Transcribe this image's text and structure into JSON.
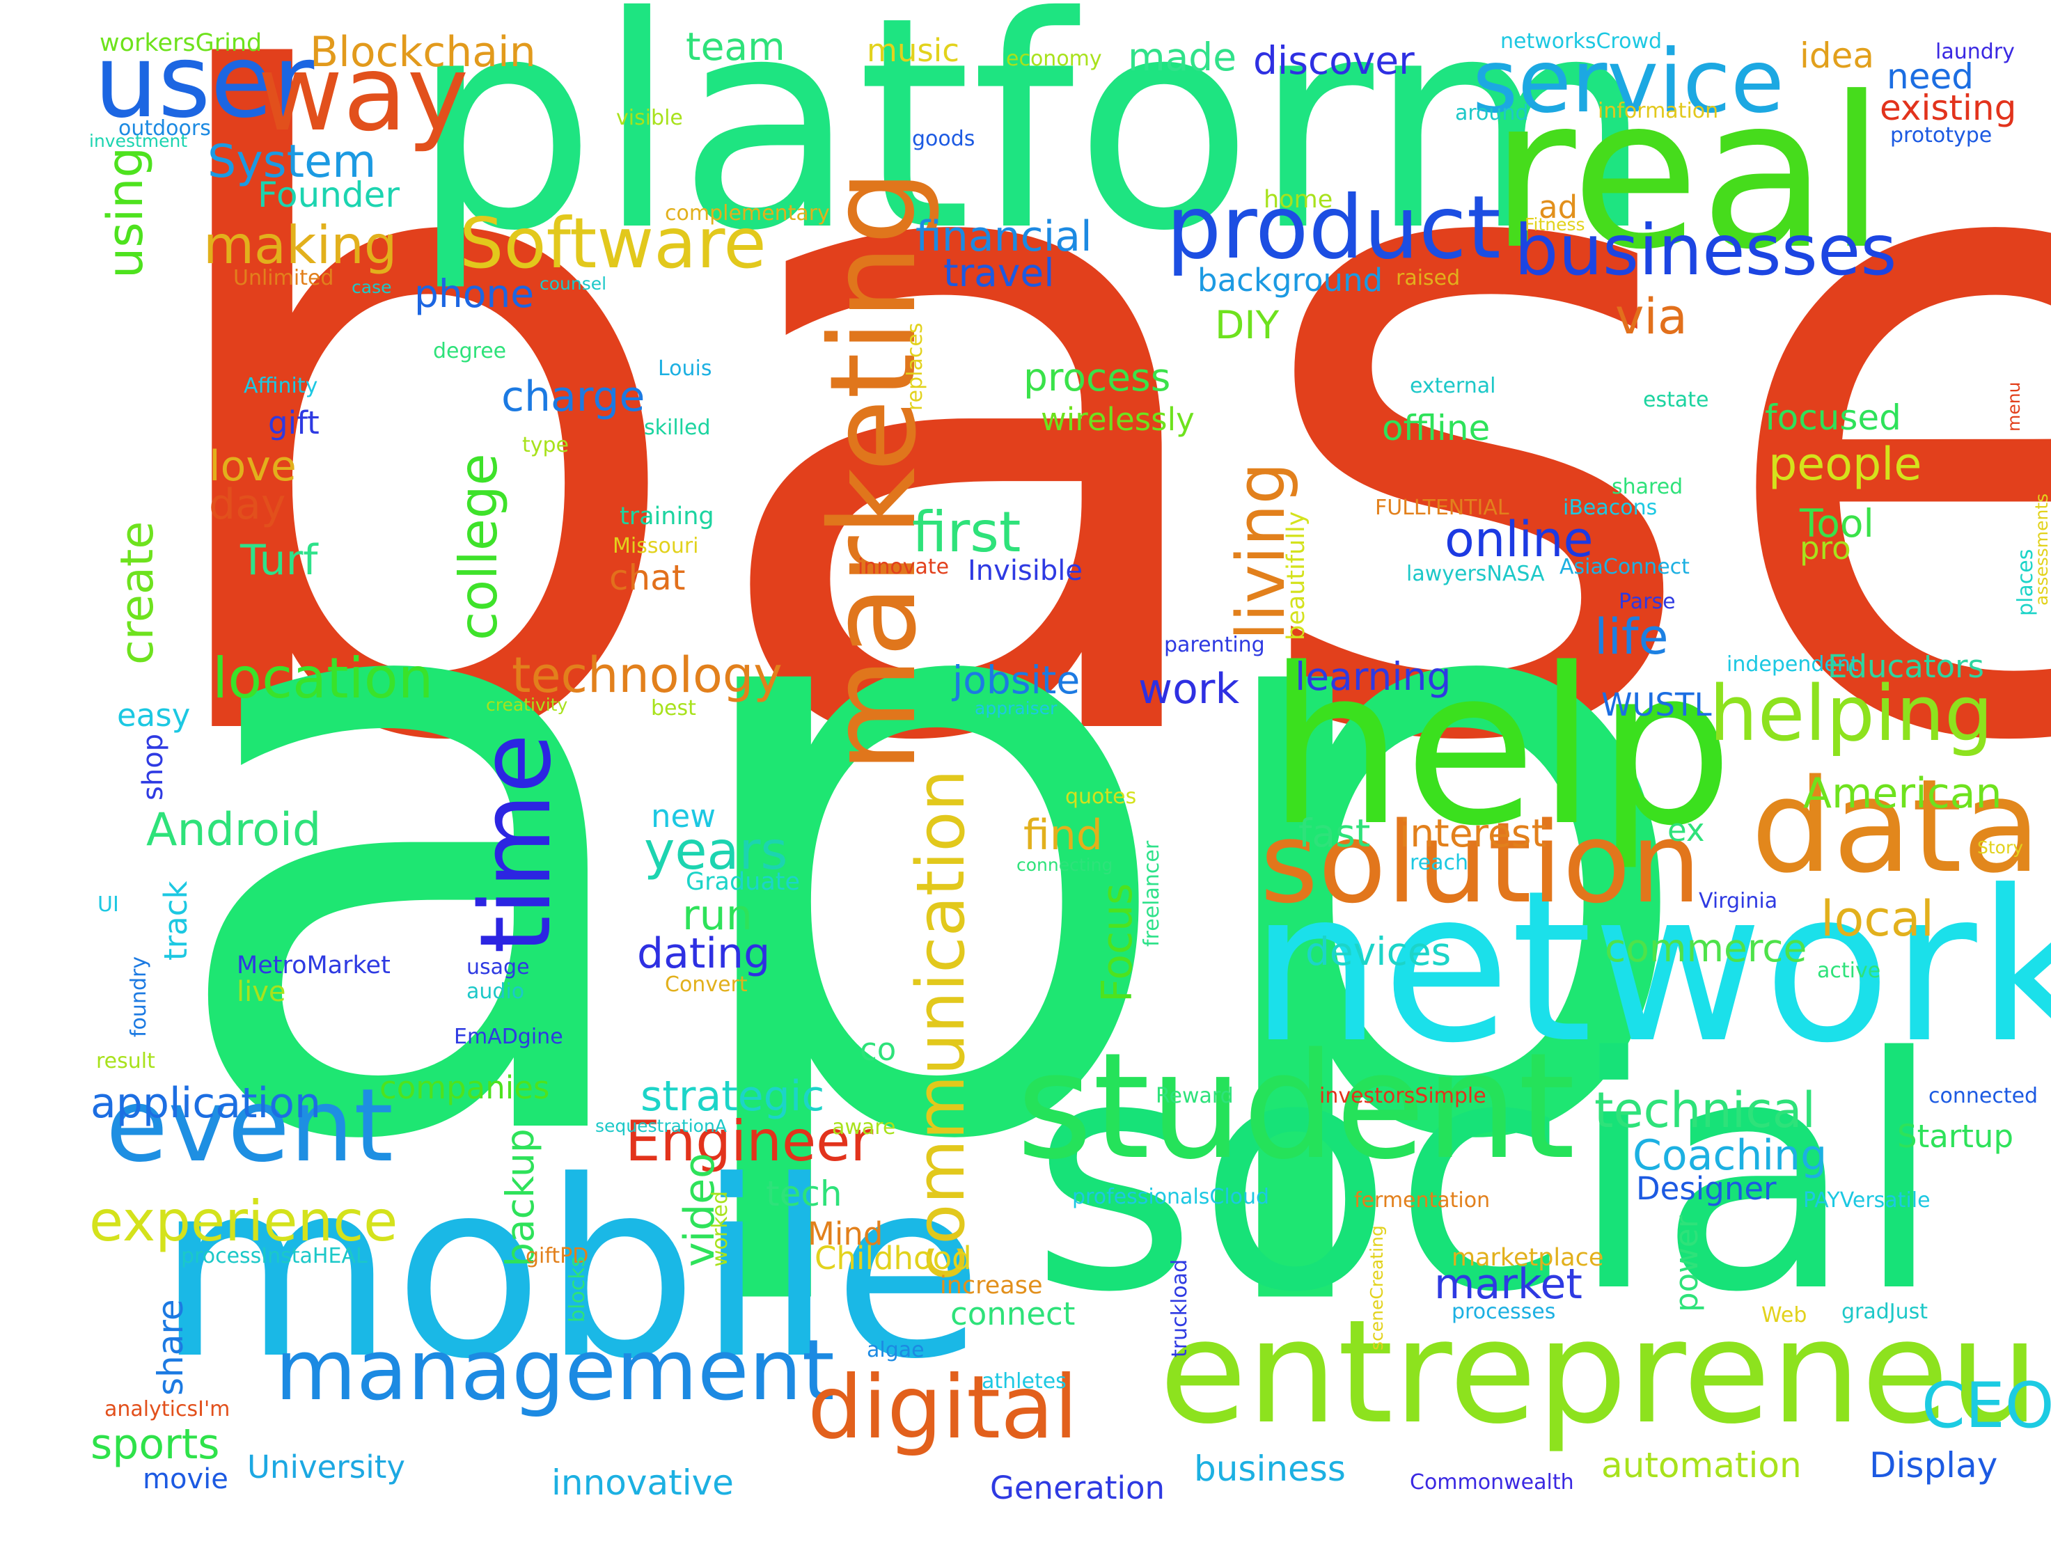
{
  "words": [
    {
      "t": "based",
      "c": "#e2401c"
    },
    {
      "t": "app",
      "c": "#1ee672"
    },
    {
      "t": "platform",
      "c": "#1ee481"
    },
    {
      "t": "real",
      "c": "#46dc1c"
    },
    {
      "t": "social",
      "c": "#17e278"
    },
    {
      "t": "mobile",
      "c": "#1ab8e6"
    },
    {
      "t": "network",
      "c": "#1be0ea"
    },
    {
      "t": "help",
      "c": "#3be01e"
    },
    {
      "t": "student",
      "c": "#25e25a"
    },
    {
      "t": "entrepreneur",
      "c": "#8de21e"
    },
    {
      "t": "data",
      "c": "#e2871c"
    },
    {
      "t": "solution",
      "c": "#e2761c"
    },
    {
      "t": "marketing",
      "c": "#e0761c"
    },
    {
      "t": "time",
      "c": "#2c25e2"
    },
    {
      "t": "event",
      "c": "#1e8fe2"
    },
    {
      "t": "management",
      "c": "#1c8ae2"
    },
    {
      "t": "digital",
      "c": "#e2601c"
    },
    {
      "t": "communication",
      "c": "#e2c81c"
    },
    {
      "t": "user",
      "c": "#1c66e2"
    },
    {
      "t": "way",
      "c": "#e2501c"
    },
    {
      "t": "service",
      "c": "#1ca8e2"
    },
    {
      "t": "product",
      "c": "#1c4ee2"
    },
    {
      "t": "businesses",
      "c": "#1c45e2"
    },
    {
      "t": "Software",
      "c": "#e2c81c"
    },
    {
      "t": "helping",
      "c": "#8de21e"
    },
    {
      "t": "living",
      "c": "#e2801c"
    },
    {
      "t": "CEO",
      "c": "#1ccbe2"
    },
    {
      "t": "Engineer",
      "c": "#e2331c"
    },
    {
      "t": "experience",
      "c": "#d4e21c"
    },
    {
      "t": "location",
      "c": "#3ae22a"
    },
    {
      "t": "technology",
      "c": "#e2801c"
    },
    {
      "t": "college",
      "c": "#3ee22a"
    },
    {
      "t": "Blockchain",
      "c": "#e29a1c"
    },
    {
      "t": "making",
      "c": "#e2b01c"
    },
    {
      "t": "System",
      "c": "#1c9ae2"
    },
    {
      "t": "Founder",
      "c": "#1cd4b0"
    },
    {
      "t": "financial",
      "c": "#1c8ae2"
    },
    {
      "t": "travel",
      "c": "#1c5ae2"
    },
    {
      "t": "team",
      "c": "#2ee27a"
    },
    {
      "t": "music",
      "c": "#e2d21c"
    },
    {
      "t": "made",
      "c": "#30e28a"
    },
    {
      "t": "discover",
      "c": "#2e30e2"
    },
    {
      "t": "idea",
      "c": "#e2a01c"
    },
    {
      "t": "need",
      "c": "#1c6ee2"
    },
    {
      "t": "existing",
      "c": "#e2331c"
    },
    {
      "t": "laundry",
      "c": "#3a28e2"
    },
    {
      "t": "prototype",
      "c": "#1c5ae2"
    },
    {
      "t": "networksCrowd",
      "c": "#1cc8e2"
    },
    {
      "t": "workersGrind",
      "c": "#6ee21c"
    },
    {
      "t": "outdoors",
      "c": "#1c8ae2"
    },
    {
      "t": "investment",
      "c": "#1cd4b0"
    },
    {
      "t": "using",
      "c": "#4ee21e"
    },
    {
      "t": "visible",
      "c": "#a8e21c"
    },
    {
      "t": "economy",
      "c": "#a8e21c"
    },
    {
      "t": "goods",
      "c": "#1c5ae2"
    },
    {
      "t": "around",
      "c": "#1cc8c8"
    },
    {
      "t": "information",
      "c": "#e2c81c"
    },
    {
      "t": "complementary",
      "c": "#e2b01c"
    },
    {
      "t": "home",
      "c": "#a8e21c"
    },
    {
      "t": "ad",
      "c": "#e2901c"
    },
    {
      "t": "Fitness",
      "c": "#e2d21c"
    },
    {
      "t": "Unlimited",
      "c": "#e2801c"
    },
    {
      "t": "case",
      "c": "#1cc8c8"
    },
    {
      "t": "counsel",
      "c": "#1cc8c8"
    },
    {
      "t": "background",
      "c": "#1c9ae2"
    },
    {
      "t": "raised",
      "c": "#e2b01c"
    },
    {
      "t": "phone",
      "c": "#1c66e2"
    },
    {
      "t": "via",
      "c": "#e2701c"
    },
    {
      "t": "DIY",
      "c": "#6ee21e"
    },
    {
      "t": "degree",
      "c": "#2ee27a"
    },
    {
      "t": "Affinity",
      "c": "#1cc8e2"
    },
    {
      "t": "Louis",
      "c": "#1cb0e2"
    },
    {
      "t": "charge",
      "c": "#1c7ae2"
    },
    {
      "t": "process",
      "c": "#3ae24a"
    },
    {
      "t": "wirelessly",
      "c": "#6ee21e"
    },
    {
      "t": "external",
      "c": "#1cc8c8"
    },
    {
      "t": "estate",
      "c": "#1cd4a0"
    },
    {
      "t": "focused",
      "c": "#2ee25a"
    },
    {
      "t": "menu",
      "c": "#e2401c"
    },
    {
      "t": "gift",
      "c": "#2e3ae2"
    },
    {
      "t": "type",
      "c": "#a8e21c"
    },
    {
      "t": "skilled",
      "c": "#1cd4a0"
    },
    {
      "t": "replaces",
      "c": "#e2d21c"
    },
    {
      "t": "offline",
      "c": "#2ee25a"
    },
    {
      "t": "love",
      "c": "#e2b01c"
    },
    {
      "t": "day",
      "c": "#e2501c"
    },
    {
      "t": "training",
      "c": "#1cd4a0"
    },
    {
      "t": "beautifully",
      "c": "#d4e21c"
    },
    {
      "t": "FULLTENTIAL",
      "c": "#e2801c"
    },
    {
      "t": "iBeacons",
      "c": "#1cc8e2"
    },
    {
      "t": "shared",
      "c": "#2ee27a"
    },
    {
      "t": "people",
      "c": "#d4e21c"
    },
    {
      "t": "Tool",
      "c": "#3ae24a"
    },
    {
      "t": "pro",
      "c": "#a8e21c"
    },
    {
      "t": "places",
      "c": "#1cd4c8"
    },
    {
      "t": "assessments",
      "c": "#e2d21c"
    },
    {
      "t": "first",
      "c": "#2ee27a"
    },
    {
      "t": "Missouri",
      "c": "#e2d21c"
    },
    {
      "t": "Turf",
      "c": "#2ee28a"
    },
    {
      "t": "chat",
      "c": "#e2701c"
    },
    {
      "t": "innovate",
      "c": "#e2401c"
    },
    {
      "t": "Invisible",
      "c": "#2e3ae2"
    },
    {
      "t": "online",
      "c": "#1c3ae2"
    },
    {
      "t": "lawyersNASA",
      "c": "#1cc8c8"
    },
    {
      "t": "AsiaConnect",
      "c": "#1cb0e2"
    },
    {
      "t": "Parse",
      "c": "#2e3ae2"
    },
    {
      "t": "life",
      "c": "#1c80e2"
    },
    {
      "t": "create",
      "c": "#6ee21e"
    },
    {
      "t": "parenting",
      "c": "#2e3ae2"
    },
    {
      "t": "independent",
      "c": "#1cc8e2"
    },
    {
      "t": "Educators",
      "c": "#2ed4a0"
    },
    {
      "t": "jobsite",
      "c": "#1c7ae2"
    },
    {
      "t": "work",
      "c": "#2e30e2"
    },
    {
      "t": "learning",
      "c": "#2e3ae2"
    },
    {
      "t": "WUSTL",
      "c": "#1c6ee2"
    },
    {
      "t": "easy",
      "c": "#1cc8e2"
    },
    {
      "t": "creativity",
      "c": "#a8e21c"
    },
    {
      "t": "best",
      "c": "#a8e21c"
    },
    {
      "t": "appraiser",
      "c": "#1cc8e2"
    },
    {
      "t": "shop",
      "c": "#2e3ae2"
    },
    {
      "t": "Android",
      "c": "#2ee27a"
    },
    {
      "t": "new",
      "c": "#1cc8e2"
    },
    {
      "t": "years",
      "c": "#1cd4b0"
    },
    {
      "t": "quotes",
      "c": "#d4e21c"
    },
    {
      "t": "find",
      "c": "#e2b01c"
    },
    {
      "t": "fast",
      "c": "#2ee27a"
    },
    {
      "t": "interest",
      "c": "#e2801c"
    },
    {
      "t": "ex",
      "c": "#2ee27a"
    },
    {
      "t": "American",
      "c": "#6ee21e"
    },
    {
      "t": "Story",
      "c": "#e2d21c"
    },
    {
      "t": "connecting",
      "c": "#2ee27a"
    },
    {
      "t": "freelancer",
      "c": "#2ee28a"
    },
    {
      "t": "reach",
      "c": "#1cc8e2"
    },
    {
      "t": "UI",
      "c": "#1cc8e2"
    },
    {
      "t": "track",
      "c": "#1cc8e2"
    },
    {
      "t": "Graduate",
      "c": "#1cd4c8"
    },
    {
      "t": "run",
      "c": "#2ee25a"
    },
    {
      "t": "dating",
      "c": "#2e30e2"
    },
    {
      "t": "Focus",
      "c": "#4ee21e"
    },
    {
      "t": "Virginia",
      "c": "#2e3ae2"
    },
    {
      "t": "local",
      "c": "#e2b01c"
    },
    {
      "t": "devices",
      "c": "#1cd4c8"
    },
    {
      "t": "commerce",
      "c": "#4ee24a"
    },
    {
      "t": "MetroMarket",
      "c": "#2e3ae2"
    },
    {
      "t": "live",
      "c": "#a8e21c"
    },
    {
      "t": "usage",
      "c": "#2e3ae2"
    },
    {
      "t": "audio",
      "c": "#1cc8c8"
    },
    {
      "t": "Convert",
      "c": "#e2b01c"
    },
    {
      "t": "active",
      "c": "#2ee27a"
    },
    {
      "t": "foundry",
      "c": "#1c7ae2"
    },
    {
      "t": "EmADgine",
      "c": "#2e3ae2"
    },
    {
      "t": "result",
      "c": "#a8e21c"
    },
    {
      "t": "co",
      "c": "#2ee27a"
    },
    {
      "t": "application",
      "c": "#1c6ee2"
    },
    {
      "t": "companies",
      "c": "#4ee21e"
    },
    {
      "t": "strategic",
      "c": "#1cd4c8"
    },
    {
      "t": "Reward",
      "c": "#2ee27a"
    },
    {
      "t": "investorsSimple",
      "c": "#e2331c"
    },
    {
      "t": "technical",
      "c": "#2ee27a"
    },
    {
      "t": "connected",
      "c": "#1c5ae2"
    },
    {
      "t": "Startup",
      "c": "#2ee25a"
    },
    {
      "t": "sequestrationA",
      "c": "#1cc8c8"
    },
    {
      "t": "aware",
      "c": "#a8e21c"
    },
    {
      "t": "Coaching",
      "c": "#1cb0e2"
    },
    {
      "t": "Designer",
      "c": "#1c5ae2"
    },
    {
      "t": "professionalsCloud",
      "c": "#1cc8e2"
    },
    {
      "t": "fermentation",
      "c": "#e2801c"
    },
    {
      "t": "PAYVersatile",
      "c": "#1cc8e2"
    },
    {
      "t": "backup",
      "c": "#2ee25a"
    },
    {
      "t": "tech",
      "c": "#2ee27a"
    },
    {
      "t": "video",
      "c": "#2ee25a"
    },
    {
      "t": "worked",
      "c": "#a8e21c"
    },
    {
      "t": "Mind",
      "c": "#e2801c"
    },
    {
      "t": "Childhood",
      "c": "#e2d21c"
    },
    {
      "t": "processInstaHEAL",
      "c": "#1cc8c8"
    },
    {
      "t": "giftPD",
      "c": "#e2801c"
    },
    {
      "t": "truckload",
      "c": "#2e3ae2"
    },
    {
      "t": "sceneCreating",
      "c": "#e2d21c"
    },
    {
      "t": "marketplace",
      "c": "#e2b01c"
    },
    {
      "t": "share",
      "c": "#1c7ae2"
    },
    {
      "t": "blocks",
      "c": "#2ee27a"
    },
    {
      "t": "increase",
      "c": "#e2901c"
    },
    {
      "t": "market",
      "c": "#2e3ae2"
    },
    {
      "t": "power",
      "c": "#2ee27a"
    },
    {
      "t": "processes",
      "c": "#1cb0e2"
    },
    {
      "t": "Web",
      "c": "#e2d21c"
    },
    {
      "t": "gradJust",
      "c": "#1cc8c8"
    },
    {
      "t": "connect",
      "c": "#2ee27a"
    },
    {
      "t": "algae",
      "c": "#1c8ae2"
    },
    {
      "t": "athletes",
      "c": "#1cc8e2"
    },
    {
      "t": "analyticsI'm",
      "c": "#e2501c"
    },
    {
      "t": "sports",
      "c": "#2ee24a"
    },
    {
      "t": "movie",
      "c": "#1c5ae2"
    },
    {
      "t": "University",
      "c": "#1ca8e2"
    },
    {
      "t": "innovative",
      "c": "#1cb0e2"
    },
    {
      "t": "business",
      "c": "#1cb0e2"
    },
    {
      "t": "Generation",
      "c": "#2e3ae2"
    },
    {
      "t": "Commonwealth",
      "c": "#3a28e2"
    },
    {
      "t": "automation",
      "c": "#a8e21c"
    },
    {
      "t": "Display",
      "c": "#1c5ae2"
    }
  ]
}
